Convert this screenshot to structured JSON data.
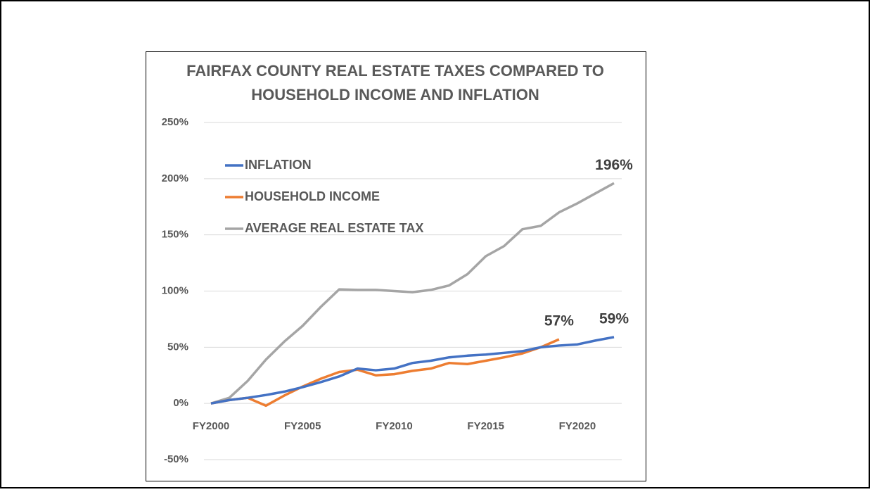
{
  "chart_data": {
    "type": "line",
    "title": [
      "FAIRFAX COUNTY REAL ESTATE TAXES COMPARED TO",
      "HOUSEHOLD INCOME AND INFLATION"
    ],
    "categories": [
      "FY2000",
      null,
      null,
      null,
      null,
      "FY2005",
      null,
      null,
      null,
      null,
      "FY2010",
      null,
      null,
      null,
      null,
      "FY2015",
      null,
      null,
      null,
      null,
      "FY2020",
      null,
      null
    ],
    "series": [
      {
        "name": "INFLATION",
        "color": "#4472c4",
        "values": [
          0,
          3,
          5,
          7.5,
          10.5,
          14.5,
          19,
          24,
          31,
          29.5,
          31,
          36,
          38,
          41,
          42.5,
          43.5,
          45,
          46.5,
          50,
          51.5,
          52.5,
          56,
          59
        ],
        "value_labels": [
          null,
          null,
          null,
          null,
          null,
          null,
          null,
          null,
          null,
          null,
          null,
          null,
          null,
          null,
          null,
          null,
          null,
          null,
          null,
          null,
          null,
          null,
          "59%"
        ]
      },
      {
        "name": "HOUSEHOLD INCOME",
        "color": "#ed7d31",
        "values": [
          0,
          3,
          5,
          -2,
          7,
          15,
          22,
          28,
          30,
          25,
          26,
          29,
          31,
          36,
          35,
          38,
          41,
          44.5,
          50,
          57,
          null,
          null,
          null
        ],
        "value_labels": [
          null,
          null,
          null,
          null,
          null,
          null,
          null,
          null,
          null,
          null,
          null,
          null,
          null,
          null,
          null,
          null,
          null,
          null,
          null,
          "57%",
          null,
          null,
          null
        ]
      },
      {
        "name": "AVERAGE REAL ESTATE TAX",
        "color": "#a5a5a5",
        "values": [
          0,
          5,
          20,
          39,
          55,
          69,
          86,
          101.5,
          101,
          101,
          100,
          99,
          101,
          105,
          115,
          131,
          140,
          155,
          158,
          170,
          178,
          187,
          196
        ],
        "value_labels": [
          null,
          null,
          null,
          null,
          null,
          null,
          null,
          null,
          null,
          null,
          null,
          null,
          null,
          null,
          null,
          null,
          null,
          null,
          null,
          null,
          null,
          null,
          "196%"
        ]
      }
    ],
    "ylim": [
      -50,
      250
    ],
    "yticks": [
      {
        "value": -50,
        "label": "-50%"
      },
      {
        "value": 0,
        "label": "0%"
      },
      {
        "value": 50,
        "label": "50%"
      },
      {
        "value": 100,
        "label": "100%"
      },
      {
        "value": 150,
        "label": "150%"
      },
      {
        "value": 200,
        "label": "200%"
      },
      {
        "value": 250,
        "label": "250%"
      }
    ],
    "grid": true,
    "legend": "upper left"
  }
}
